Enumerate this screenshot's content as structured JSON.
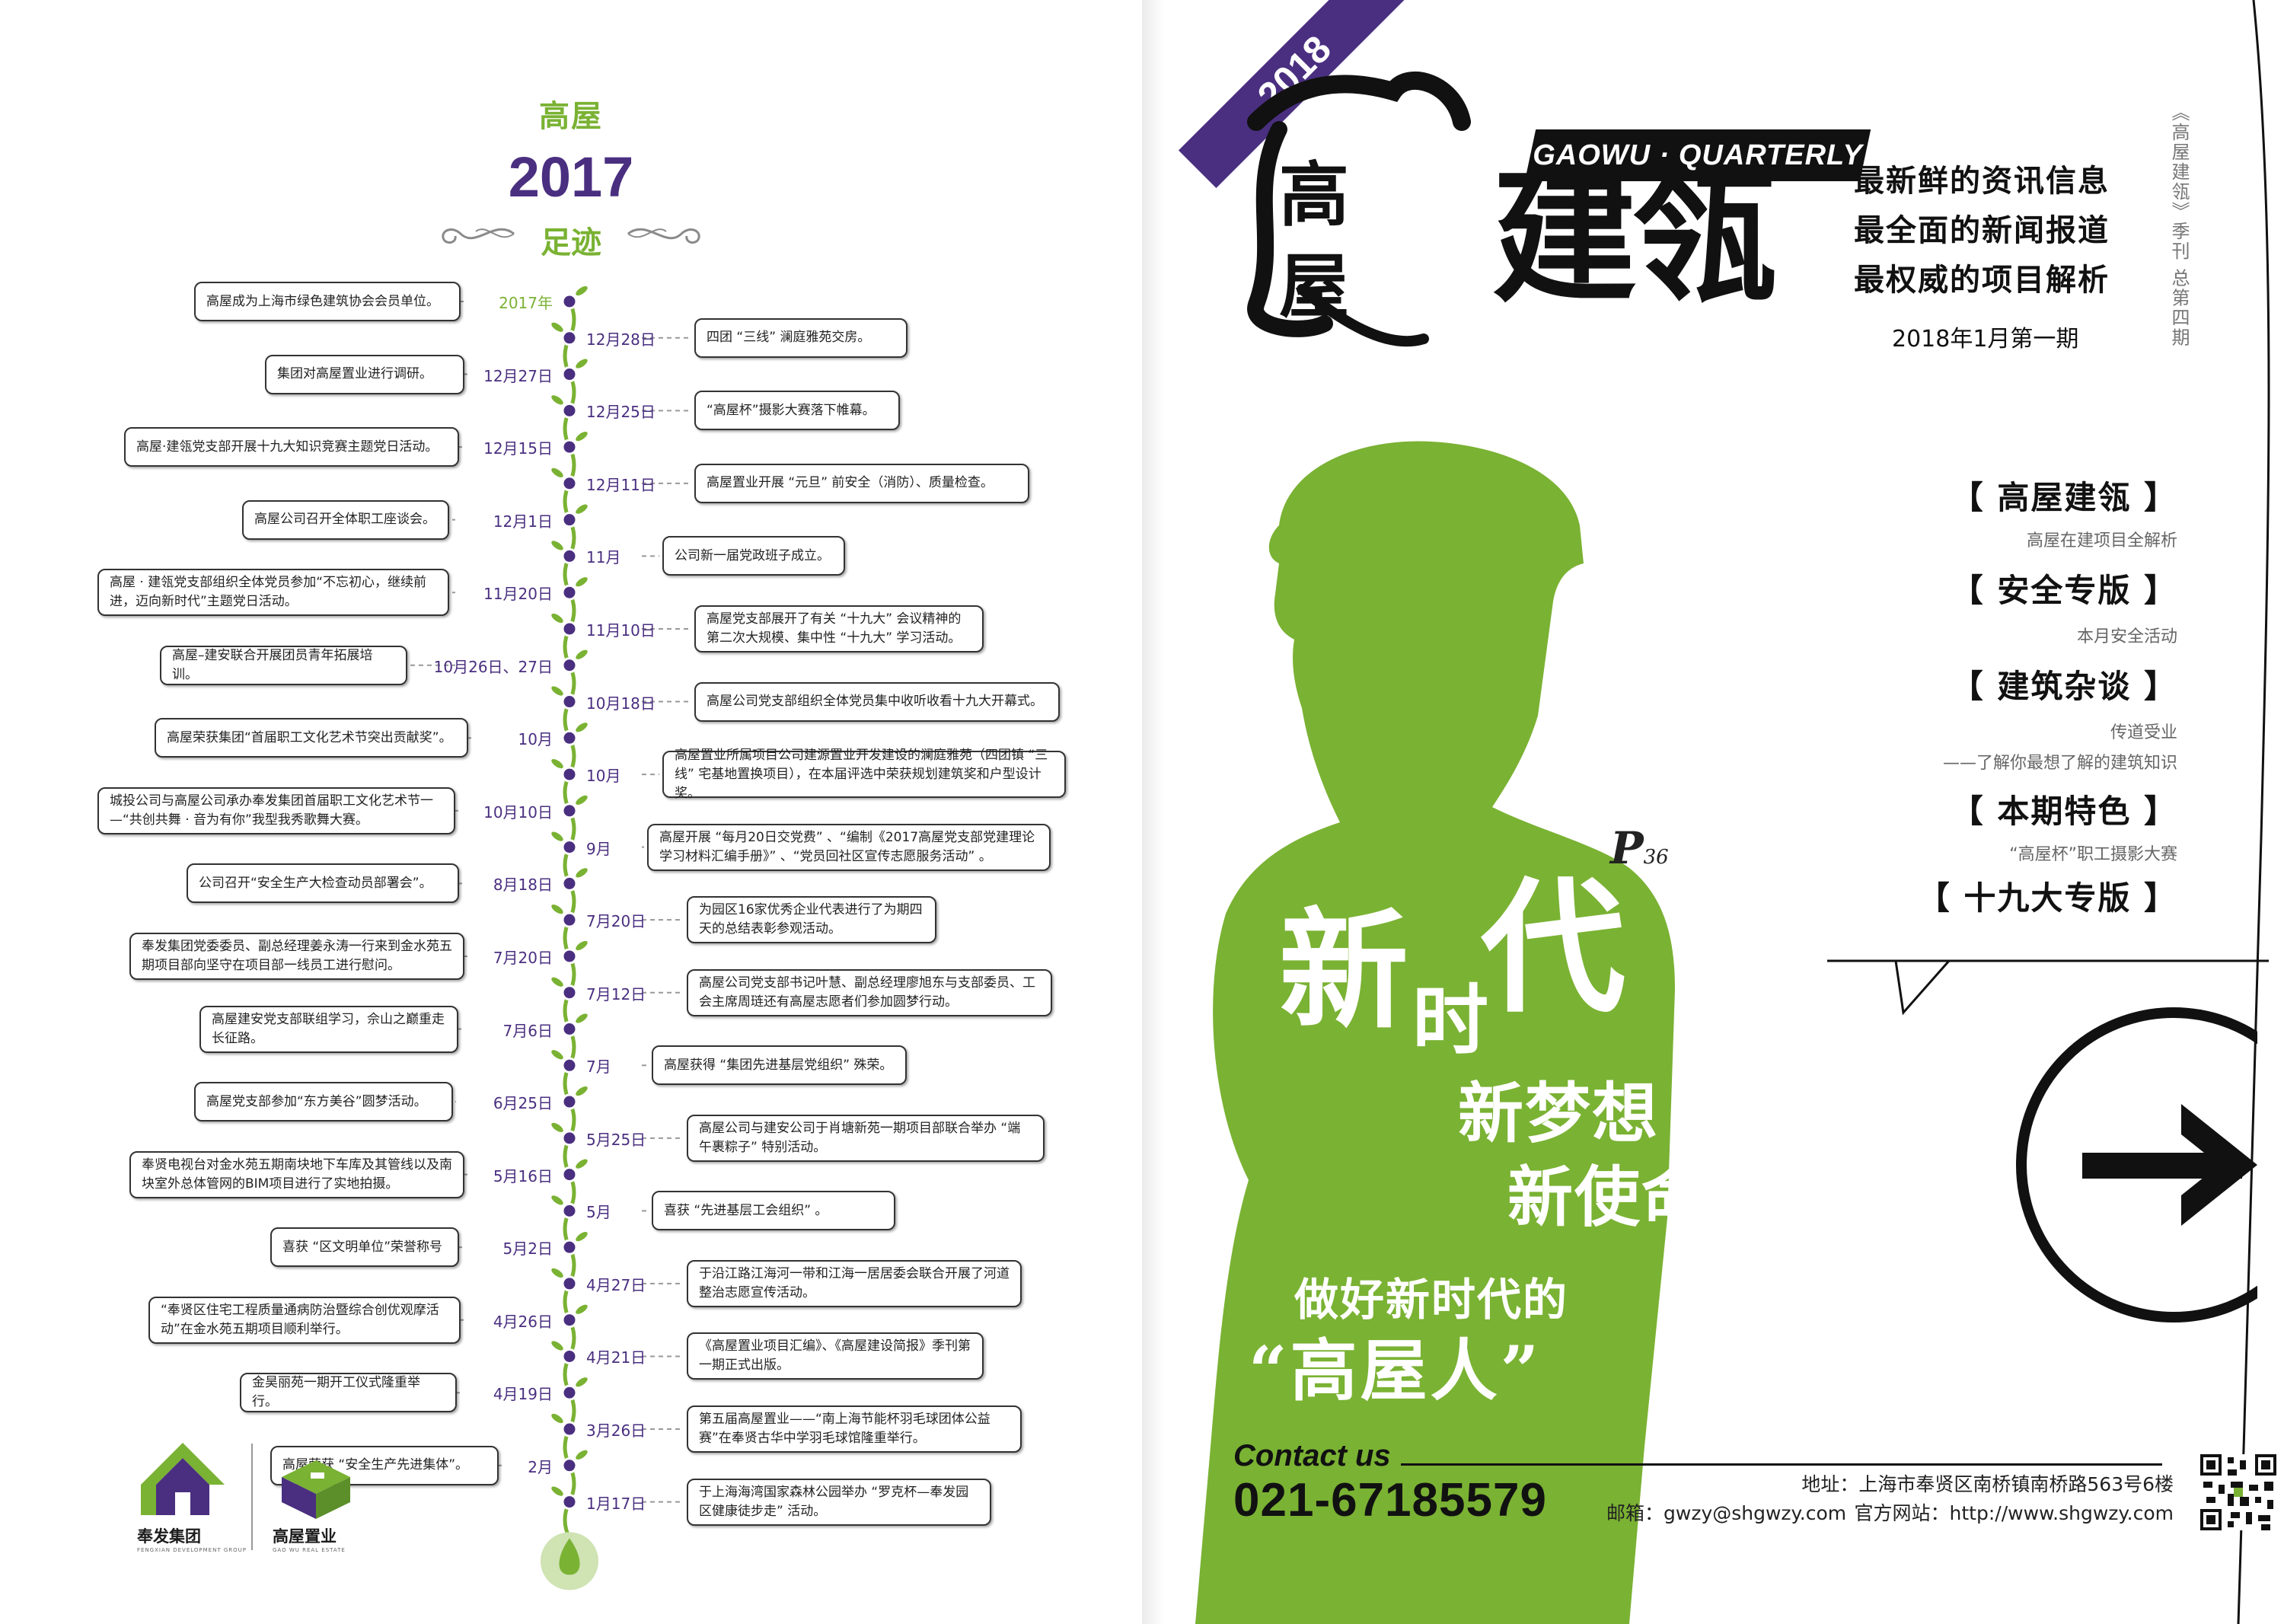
{
  "timeline": {
    "header": {
      "brand": "高屋",
      "year": "2017",
      "footprint": "足迹"
    },
    "left_entries": [
      {
        "text": "高屋成为上海市绿色建筑协会会员单位。",
        "date": "2017年",
        "highlight": true
      },
      {
        "text": "集团对高屋置业进行调研。",
        "date": "12月27日"
      },
      {
        "text": "高屋·建瓴党支部开展十九大知识竞赛主题党日活动。",
        "date": "12月15日"
      },
      {
        "text": "高屋公司召开全体职工座谈会。",
        "date": "12月1日"
      },
      {
        "text": "高屋 · 建瓴党支部组织全体党员参加“不忘初心，继续前进，迈向新时代”主题党日活动。",
        "date": "11月20日"
      },
      {
        "text": "高屋–建安联合开展团员青年拓展培训。",
        "date": "10月26日、27日"
      },
      {
        "text": "高屋荣获集团“首届职工文化艺术节突出贡献奖”。",
        "date": "10月"
      },
      {
        "text": "城投公司与高屋公司承办奉发集团首届职工文化艺术节一—“共创共舞 · 音为有你”我型我秀歌舞大赛。",
        "date": "10月10日"
      },
      {
        "text": "公司召开“安全生产大检查动员部署会”。",
        "date": "8月18日"
      },
      {
        "text": "奉发集团党委委员、副总经理姜永涛一行来到金水苑五期项目部向坚守在项目部一线员工进行慰问。",
        "date": "7月20日"
      },
      {
        "text": "高屋建安党支部联组学习，佘山之巅重走长征路。",
        "date": "7月6日"
      },
      {
        "text": "高屋党支部参加“东方美谷”圆梦活动。",
        "date": "6月25日"
      },
      {
        "text": "奉贤电视台对金水苑五期南块地下车库及其管线以及南块室外总体管网的BIM项目进行了实地拍摄。",
        "date": "5月16日"
      },
      {
        "text": "喜获 “区文明单位”荣誉称号",
        "date": "5月2日"
      },
      {
        "text": "“奉贤区住宅工程质量通病防治暨综合创优观摩活动”在金水苑五期项目顺利举行。",
        "date": "4月26日"
      },
      {
        "text": "金昊丽苑一期开工仪式隆重举行。",
        "date": "4月19日"
      },
      {
        "text": "高屋荣获 “安全生产先进集体”。",
        "date": "2月"
      }
    ],
    "right_entries": [
      {
        "text": "四团 “三线” 澜庭雅苑交房。",
        "date": "12月28日"
      },
      {
        "text": "“高屋杯”摄影大赛落下帷幕。",
        "date": "12月25日"
      },
      {
        "text": "高屋置业开展 “元旦” 前安全（消防）、质量检查。",
        "date": "12月11日"
      },
      {
        "text": "公司新一届党政班子成立。",
        "date": "11月"
      },
      {
        "text": "高屋党支部展开了有关 “十九大” 会议精神的第二次大规模、集中性 “十九大” 学习活动。",
        "date": "11月10日"
      },
      {
        "text": "高屋公司党支部组织全体党员集中收听收看十九大开幕式。",
        "date": "10月18日"
      },
      {
        "text": "高屋置业所属项目公司建源置业开发建设的澜庭雅苑（四团镇 “三线” 宅基地置换项目），在本届评选中荣获规划建筑奖和户型设计奖。",
        "date": "10月"
      },
      {
        "text": "高屋开展 “每月20日交党费” 、“编制《2017高屋党支部党建理论学习材料汇编手册》” 、“党员回社区宣传志愿服务活动” 。",
        "date": "9月"
      },
      {
        "text": "为园区16家优秀企业代表进行了为期四天的总结表彰参观活动。",
        "date": "7月20日"
      },
      {
        "text": "高屋公司党支部书记叶慧、副总经理廖旭东与支部委员、工会主席周琏还有高屋志愿者们参加圆梦行动。",
        "date": "7月12日"
      },
      {
        "text": "高屋获得 “集团先进基层党组织” 殊荣。",
        "date": "7月"
      },
      {
        "text": "高屋公司与建安公司于肖塘新苑一期项目部联合举办 “端午裹粽子” 特别活动。",
        "date": "5月25日"
      },
      {
        "text": "喜获 “先进基层工会组织” 。",
        "date": "5月"
      },
      {
        "text": "于沿江路江海河一带和江海一居居委会联合开展了河道整治志愿宣传活动。",
        "date": "4月27日"
      },
      {
        "text": "《高屋置业项目汇编》、《高屋建设简报》季刊第一期正式出版。",
        "date": "4月21日"
      },
      {
        "text": "第五届高屋置业——“南上海节能杯羽毛球团体公益赛”在奉贤古华中学羽毛球馆隆重举行。",
        "date": "3月26日"
      },
      {
        "text": "于上海海湾国家森林公园举办 “罗克杯—奉发园区健康徒步走” 活动。",
        "date": "1月17日"
      }
    ],
    "logos": [
      {
        "name": "奉发集团",
        "sub": "FENGXIAN DEVELOPMENT GROUP"
      },
      {
        "name": "高屋置业",
        "sub": "GAO WU REAL ESTATE"
      }
    ]
  },
  "cover": {
    "year_ribbon": "2018",
    "masthead": {
      "char1": "高",
      "char2": "屋",
      "main": "建瓴",
      "english": "GAOWU · QUARTERLY"
    },
    "taglines": [
      "最新鲜的资讯信息",
      "最全面的新闻报道",
      "最权威的项目解析"
    ],
    "issue": "2018年1月第一期",
    "vertical_title": "《高屋建瓴》季刊 总第四期",
    "sections": [
      {
        "title": "【 高屋建瓴 】",
        "sub": [
          "高屋在建项目全解析"
        ]
      },
      {
        "title": "【 安全专版 】",
        "sub": [
          "本月安全活动"
        ]
      },
      {
        "title": "【 建筑杂谈 】",
        "sub": [
          "传道受业",
          "——了解你最想了解的建筑知识"
        ]
      },
      {
        "title": "【 本期特色 】",
        "sub": [
          "“高屋杯”职工摄影大赛"
        ]
      },
      {
        "title": "【 十九大专版 】",
        "sub": []
      }
    ],
    "page_ref": {
      "letter": "P",
      "number": "36"
    },
    "slogan": {
      "line1_a": "新",
      "line1_b": "时",
      "line1_c": "代",
      "line2": "新梦想",
      "line3": "新使命",
      "line4": "做好新时代的",
      "line5": "“高屋人”"
    },
    "contact": {
      "label": "Contact us",
      "phone": "021-67185579",
      "address": "地址：上海市奉贤区南桥镇南桥路563号6楼",
      "email": "邮箱：gwzy@shgwzy.com",
      "website": "官方网站：http://www.shgwzy.com"
    },
    "colors": {
      "green": "#7ab233",
      "purple": "#4a2f80",
      "black": "#111111"
    }
  }
}
